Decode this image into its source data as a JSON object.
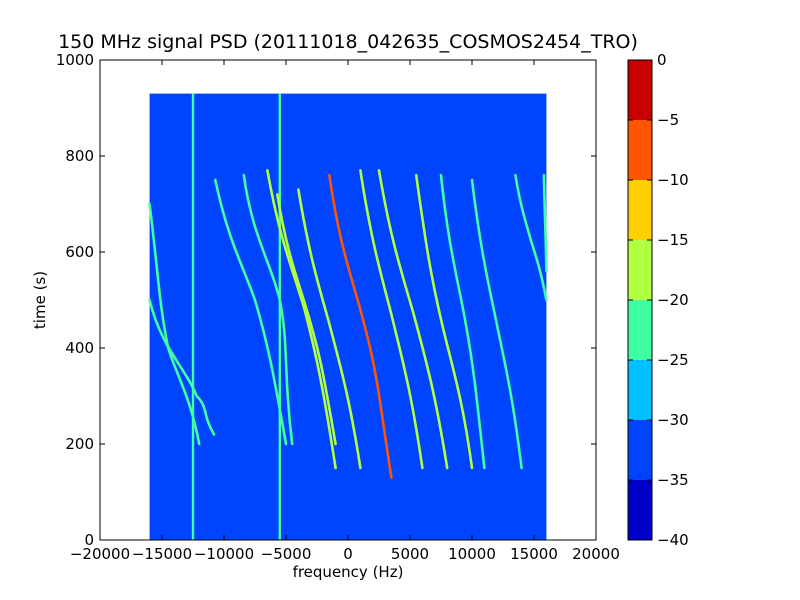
{
  "chart_data": {
    "type": "heatmap",
    "title": "150 MHz signal PSD (20111018_042635_COSMOS2454_TRO)",
    "xlabel": "frequency (Hz)",
    "ylabel": "time (s)",
    "xlim": [
      -20000,
      20000
    ],
    "ylim": [
      0,
      1000
    ],
    "x_ticks": [
      -20000,
      -15000,
      -10000,
      -5000,
      0,
      5000,
      10000,
      15000,
      20000
    ],
    "y_ticks": [
      0,
      200,
      400,
      600,
      800,
      1000
    ],
    "data_extent": {
      "x": [
        -16000,
        16000
      ],
      "y": [
        0,
        930
      ]
    },
    "background_level": -35,
    "colorbar": {
      "levels": [
        -40,
        -35,
        -30,
        -25,
        -20,
        -15,
        -10,
        -5,
        0
      ],
      "colors": [
        "#0000c8",
        "#0044ff",
        "#00c0ff",
        "#40ffa0",
        "#b0ff40",
        "#ffd000",
        "#ff5500",
        "#c80000"
      ]
    },
    "vertical_lines": [
      {
        "freq": -12500,
        "t_range": [
          0,
          930
        ],
        "level": -25
      },
      {
        "freq": -5500,
        "t_range": [
          0,
          930
        ],
        "level": -25
      }
    ],
    "traces": [
      {
        "t_start": 700,
        "t_end": 200,
        "f_start": -16000,
        "f_end": -12000,
        "t_mid": 400,
        "f_mid": -14500,
        "level": -25
      },
      {
        "t_start": 500,
        "t_end": 220,
        "f_start": -16000,
        "f_end": -10800,
        "t_mid": 300,
        "f_mid": -12200,
        "level": -25
      },
      {
        "t_start": 750,
        "t_end": 200,
        "f_start": -10700,
        "f_end": -5000,
        "t_mid": 500,
        "f_mid": -7500,
        "level": -25
      },
      {
        "t_start": 760,
        "t_end": 200,
        "f_start": -8400,
        "f_end": -4500,
        "t_mid": 500,
        "f_mid": -5500,
        "level": -25
      },
      {
        "t_start": 770,
        "t_end": 150,
        "f_start": -6500,
        "f_end": -1000,
        "t_mid": 480,
        "f_mid": -3500,
        "level": -20
      },
      {
        "t_start": 720,
        "t_end": 200,
        "f_start": -5700,
        "f_end": -1000,
        "t_mid": 450,
        "f_mid": -3000,
        "level": -20
      },
      {
        "t_start": 730,
        "t_end": 150,
        "f_start": -4000,
        "f_end": 1000,
        "t_mid": 450,
        "f_mid": -1500,
        "level": -20
      },
      {
        "t_start": 760,
        "t_end": 130,
        "f_start": -1500,
        "f_end": 3500,
        "t_mid": 430,
        "f_mid": 1500,
        "level": -10
      },
      {
        "t_start": 770,
        "t_end": 150,
        "f_start": 1000,
        "f_end": 6000,
        "t_mid": 470,
        "f_mid": 3500,
        "level": -20
      },
      {
        "t_start": 770,
        "t_end": 150,
        "f_start": 2500,
        "f_end": 8000,
        "t_mid": 470,
        "f_mid": 5300,
        "level": -20
      },
      {
        "t_start": 760,
        "t_end": 150,
        "f_start": 5500,
        "f_end": 10000,
        "t_mid": 460,
        "f_mid": 7500,
        "level": -20
      },
      {
        "t_start": 760,
        "t_end": 150,
        "f_start": 7500,
        "f_end": 11000,
        "t_mid": 450,
        "f_mid": 9500,
        "level": -25
      },
      {
        "t_start": 750,
        "t_end": 150,
        "f_start": 10000,
        "f_end": 14000,
        "t_mid": 450,
        "f_mid": 12000,
        "level": -25
      },
      {
        "t_start": 760,
        "t_end": 500,
        "f_start": 13500,
        "f_end": 16000,
        "t_mid": 620,
        "f_mid": 14800,
        "level": -25
      },
      {
        "t_start": 760,
        "t_end": 560,
        "f_start": 15800,
        "f_end": 16000,
        "t_mid": 660,
        "f_mid": 15900,
        "level": -25
      }
    ]
  }
}
